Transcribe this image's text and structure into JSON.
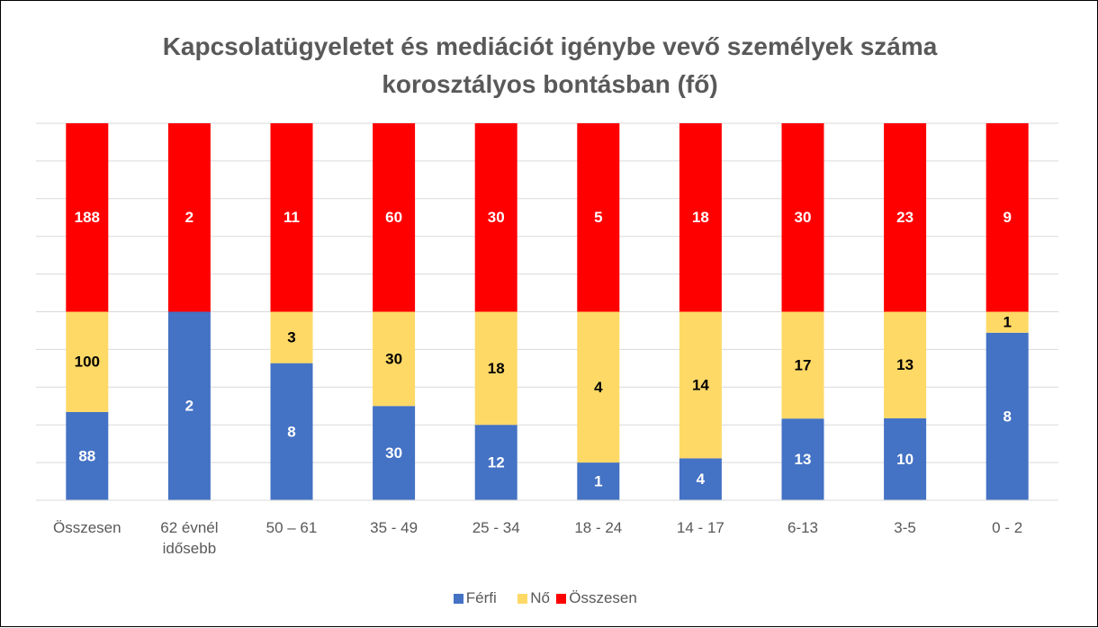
{
  "chart_data": {
    "type": "bar",
    "stacking": "percent",
    "title": "Kapcsolatügyeletet és mediációt igénybe vevő személyek száma korosztályos bontásban (fő)",
    "categories": [
      "Összesen",
      "62 évnél idősebb",
      "50 – 61",
      "35 - 49",
      "25 - 34",
      "18 - 24",
      "14 - 17",
      "6-13",
      "3-5",
      "0 - 2"
    ],
    "series": [
      {
        "name": "Férfi",
        "color": "#4472c4",
        "label_color": "#ffffff",
        "values": [
          88,
          2,
          8,
          30,
          12,
          1,
          4,
          13,
          10,
          8
        ]
      },
      {
        "name": "Nő",
        "color": "#ffd966",
        "label_color": "#000000",
        "values": [
          100,
          0,
          3,
          30,
          18,
          4,
          14,
          17,
          13,
          1
        ]
      },
      {
        "name": "Összesen",
        "color": "#ff0000",
        "label_color": "#ffffff",
        "values": [
          188,
          2,
          11,
          60,
          30,
          5,
          18,
          30,
          23,
          9
        ]
      }
    ],
    "ylim": [
      0,
      100
    ],
    "yticks": [
      0,
      10,
      20,
      30,
      40,
      50,
      60,
      70,
      80,
      90,
      100
    ],
    "ytick_labels": false,
    "grid": true,
    "legend": "bottom"
  }
}
